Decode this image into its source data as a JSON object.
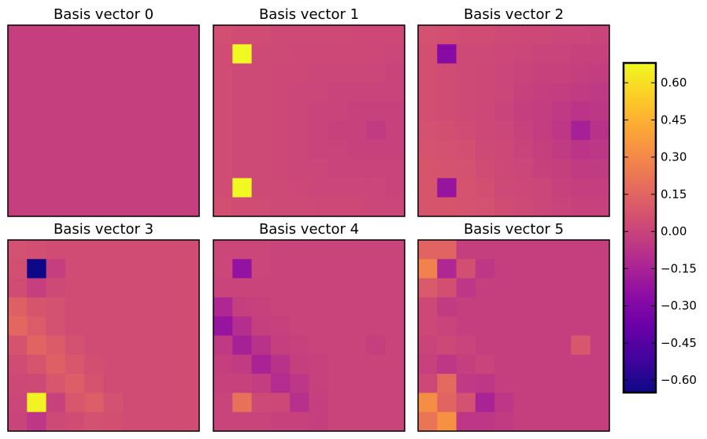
{
  "colors": {
    "frame": "#000000",
    "background": "#ffffff"
  },
  "chart_data": {
    "type": "heatmap",
    "colormap": "plasma",
    "vmin": -0.65,
    "vmax": 0.68,
    "colorbar": {
      "ticks": [
        0.6,
        0.45,
        0.3,
        0.15,
        0.0,
        -0.15,
        -0.3,
        -0.45,
        -0.6
      ],
      "tick_labels": [
        "0.60",
        "0.45",
        "0.30",
        "0.15",
        "0.00",
        "−0.15",
        "−0.30",
        "−0.45",
        "−0.60"
      ]
    },
    "panels": [
      {
        "title": "Basis vector 0",
        "grid": [
          [
            -0.02,
            -0.02,
            -0.02,
            -0.02,
            -0.02,
            -0.02,
            -0.02,
            -0.02,
            -0.02,
            -0.02
          ],
          [
            -0.02,
            -0.02,
            -0.02,
            -0.02,
            -0.02,
            -0.02,
            -0.02,
            -0.02,
            -0.02,
            -0.02
          ],
          [
            -0.02,
            -0.02,
            -0.02,
            -0.02,
            -0.02,
            -0.02,
            -0.02,
            -0.02,
            -0.02,
            -0.02
          ],
          [
            -0.02,
            -0.02,
            -0.02,
            -0.02,
            -0.02,
            -0.02,
            -0.02,
            -0.02,
            -0.02,
            -0.02
          ],
          [
            -0.02,
            -0.02,
            -0.02,
            -0.02,
            -0.02,
            -0.02,
            -0.02,
            -0.02,
            -0.02,
            -0.02
          ],
          [
            -0.02,
            -0.02,
            -0.02,
            -0.02,
            -0.02,
            -0.02,
            -0.02,
            -0.02,
            -0.02,
            -0.02
          ],
          [
            -0.02,
            -0.02,
            -0.02,
            -0.02,
            -0.02,
            -0.02,
            -0.02,
            -0.02,
            -0.02,
            -0.02
          ],
          [
            -0.02,
            -0.02,
            -0.02,
            -0.02,
            -0.02,
            -0.02,
            -0.02,
            -0.02,
            -0.02,
            -0.02
          ],
          [
            -0.02,
            -0.02,
            -0.02,
            -0.02,
            -0.02,
            -0.02,
            -0.02,
            -0.02,
            -0.02,
            -0.02
          ],
          [
            -0.02,
            -0.02,
            -0.02,
            -0.02,
            -0.02,
            -0.02,
            -0.02,
            -0.02,
            -0.02,
            -0.02
          ]
        ]
      },
      {
        "title": "Basis vector 1",
        "grid": [
          [
            0.05,
            0.04,
            0.04,
            0.03,
            0.03,
            0.03,
            0.03,
            0.02,
            0.02,
            0.02
          ],
          [
            0.04,
            0.68,
            0.03,
            0.03,
            0.02,
            0.02,
            0.02,
            0.02,
            0.02,
            0.01
          ],
          [
            0.04,
            0.03,
            0.03,
            0.02,
            0.02,
            0.01,
            0.01,
            0.01,
            0.01,
            0.0
          ],
          [
            0.04,
            0.03,
            0.03,
            0.02,
            0.01,
            0.01,
            0.0,
            0.0,
            0.0,
            0.0
          ],
          [
            0.04,
            0.03,
            0.03,
            0.02,
            0.01,
            0.0,
            0.0,
            -0.01,
            -0.01,
            -0.01
          ],
          [
            0.04,
            0.03,
            0.03,
            0.02,
            0.01,
            0.0,
            -0.01,
            -0.01,
            -0.04,
            -0.01
          ],
          [
            0.04,
            0.03,
            0.03,
            0.02,
            0.01,
            0.0,
            0.0,
            -0.01,
            -0.01,
            -0.01
          ],
          [
            0.04,
            0.03,
            0.03,
            0.02,
            0.01,
            0.01,
            0.0,
            0.0,
            0.0,
            0.0
          ],
          [
            0.04,
            0.68,
            0.03,
            0.03,
            0.02,
            0.01,
            0.01,
            0.01,
            0.01,
            0.0
          ],
          [
            0.05,
            0.04,
            0.04,
            0.03,
            0.03,
            0.02,
            0.02,
            0.02,
            0.01,
            0.01
          ]
        ]
      },
      {
        "title": "Basis vector 2",
        "grid": [
          [
            0.06,
            0.05,
            0.04,
            0.04,
            0.03,
            0.02,
            0.02,
            0.01,
            0.01,
            0.0
          ],
          [
            0.05,
            -0.28,
            0.03,
            0.03,
            0.02,
            0.01,
            0.0,
            0.0,
            -0.01,
            -0.01
          ],
          [
            0.05,
            0.04,
            0.03,
            0.02,
            0.01,
            0.0,
            -0.01,
            -0.01,
            -0.02,
            -0.03
          ],
          [
            0.05,
            0.04,
            0.03,
            0.02,
            0.01,
            -0.01,
            -0.02,
            -0.03,
            -0.04,
            -0.05
          ],
          [
            0.05,
            0.04,
            0.03,
            0.02,
            0.0,
            -0.02,
            -0.03,
            -0.05,
            -0.07,
            -0.06
          ],
          [
            0.06,
            0.05,
            0.04,
            0.02,
            0.01,
            -0.01,
            -0.03,
            -0.06,
            -0.16,
            -0.08
          ],
          [
            0.07,
            0.06,
            0.05,
            0.03,
            0.02,
            0.0,
            -0.02,
            -0.04,
            -0.07,
            -0.06
          ],
          [
            0.08,
            0.07,
            0.06,
            0.04,
            0.02,
            0.01,
            -0.01,
            -0.02,
            -0.04,
            -0.04
          ],
          [
            0.08,
            -0.22,
            0.07,
            0.05,
            0.03,
            0.02,
            0.01,
            -0.01,
            -0.02,
            -0.02
          ],
          [
            0.08,
            0.08,
            0.07,
            0.06,
            0.04,
            0.03,
            0.01,
            0.0,
            -0.01,
            -0.01
          ]
        ]
      },
      {
        "title": "Basis vector 3",
        "grid": [
          [
            0.06,
            0.05,
            0.04,
            0.04,
            0.04,
            0.04,
            0.04,
            0.04,
            0.04,
            0.04
          ],
          [
            0.05,
            -0.65,
            -0.02,
            0.04,
            0.04,
            0.04,
            0.04,
            0.04,
            0.04,
            0.04
          ],
          [
            0.04,
            -0.02,
            0.03,
            0.04,
            0.04,
            0.04,
            0.04,
            0.04,
            0.04,
            0.04
          ],
          [
            0.13,
            0.08,
            0.06,
            0.04,
            0.04,
            0.04,
            0.04,
            0.04,
            0.04,
            0.04
          ],
          [
            0.16,
            0.11,
            0.06,
            0.04,
            0.04,
            0.04,
            0.04,
            0.04,
            0.04,
            0.04
          ],
          [
            0.07,
            0.15,
            0.11,
            0.06,
            0.04,
            0.04,
            0.04,
            0.04,
            0.04,
            0.04
          ],
          [
            0.04,
            0.08,
            0.13,
            0.09,
            0.05,
            0.04,
            0.04,
            0.04,
            0.04,
            0.04
          ],
          [
            0.02,
            0.03,
            0.09,
            0.12,
            0.07,
            0.04,
            0.04,
            0.04,
            0.04,
            0.04
          ],
          [
            0.01,
            0.66,
            -0.01,
            0.09,
            0.12,
            0.06,
            0.04,
            0.04,
            0.04,
            0.04
          ],
          [
            0.0,
            -0.06,
            0.03,
            0.04,
            0.06,
            0.05,
            0.04,
            0.04,
            0.04,
            0.04
          ]
        ]
      },
      {
        "title": "Basis vector 4",
        "grid": [
          [
            0.01,
            0.01,
            0.01,
            0.0,
            0.0,
            0.0,
            0.0,
            0.0,
            0.0,
            0.0
          ],
          [
            0.01,
            -0.23,
            0.01,
            0.0,
            0.0,
            0.0,
            0.0,
            0.0,
            0.0,
            0.0
          ],
          [
            0.0,
            0.0,
            0.0,
            0.0,
            0.0,
            0.0,
            0.0,
            0.0,
            0.0,
            0.0
          ],
          [
            -0.13,
            -0.02,
            -0.01,
            0.0,
            0.0,
            0.0,
            0.0,
            0.0,
            0.0,
            0.0
          ],
          [
            -0.22,
            -0.1,
            -0.02,
            -0.01,
            0.0,
            0.0,
            0.0,
            0.0,
            0.0,
            0.0
          ],
          [
            -0.05,
            -0.16,
            -0.08,
            -0.02,
            -0.01,
            0.0,
            0.0,
            0.0,
            -0.02,
            0.0
          ],
          [
            -0.02,
            -0.04,
            -0.15,
            -0.08,
            -0.02,
            -0.01,
            0.0,
            0.0,
            0.0,
            0.0
          ],
          [
            -0.01,
            -0.01,
            -0.03,
            -0.11,
            -0.06,
            -0.01,
            0.0,
            0.0,
            0.0,
            0.0
          ],
          [
            0.0,
            0.2,
            0.03,
            0.02,
            -0.09,
            -0.02,
            0.0,
            0.0,
            0.0,
            0.0
          ],
          [
            0.0,
            0.0,
            0.0,
            -0.01,
            -0.01,
            -0.02,
            0.0,
            0.0,
            0.0,
            0.0
          ]
        ]
      },
      {
        "title": "Basis vector 5",
        "grid": [
          [
            0.15,
            0.15,
            -0.02,
            -0.02,
            -0.02,
            -0.02,
            -0.02,
            -0.02,
            -0.02,
            -0.02
          ],
          [
            0.27,
            -0.13,
            0.05,
            -0.06,
            -0.02,
            -0.02,
            -0.02,
            -0.02,
            -0.02,
            -0.02
          ],
          [
            0.1,
            0.05,
            -0.06,
            -0.02,
            -0.02,
            -0.02,
            -0.02,
            -0.02,
            -0.02,
            -0.02
          ],
          [
            0.02,
            -0.04,
            -0.02,
            -0.02,
            -0.02,
            -0.02,
            -0.02,
            -0.02,
            -0.02,
            -0.02
          ],
          [
            0.02,
            0.0,
            -0.02,
            -0.02,
            -0.02,
            -0.02,
            -0.02,
            -0.02,
            -0.02,
            -0.02
          ],
          [
            0.0,
            0.02,
            0.0,
            -0.02,
            -0.02,
            -0.02,
            -0.02,
            -0.02,
            0.09,
            -0.02
          ],
          [
            -0.01,
            -0.06,
            -0.02,
            0.0,
            -0.02,
            -0.02,
            -0.02,
            -0.02,
            -0.02,
            -0.02
          ],
          [
            0.02,
            0.17,
            -0.05,
            -0.06,
            -0.02,
            -0.02,
            -0.02,
            -0.02,
            -0.02,
            -0.02
          ],
          [
            0.32,
            0.15,
            0.06,
            -0.15,
            -0.06,
            -0.02,
            -0.02,
            -0.02,
            -0.02,
            -0.02
          ],
          [
            0.22,
            0.33,
            -0.06,
            -0.06,
            -0.04,
            -0.02,
            -0.02,
            -0.02,
            -0.02,
            -0.02
          ]
        ]
      }
    ]
  }
}
